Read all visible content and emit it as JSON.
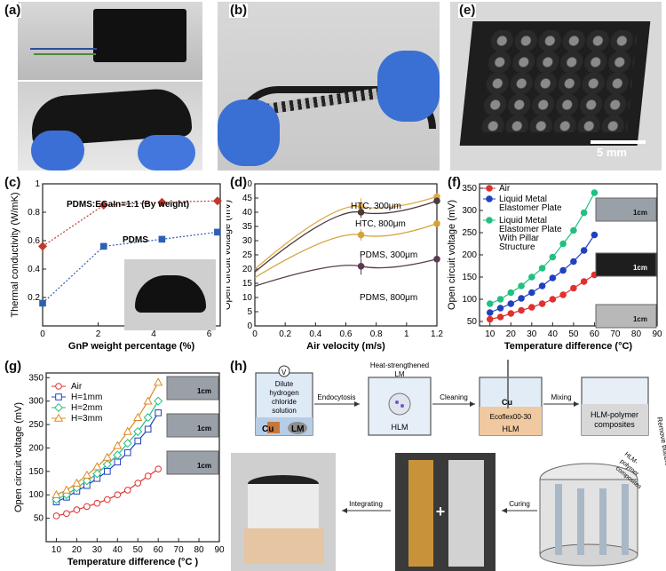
{
  "panel_labels": {
    "a": "(a)",
    "b": "(b)",
    "c": "(c)",
    "d": "(d)",
    "e": "(e)",
    "f": "(f)",
    "g": "(g)",
    "h": "(h)"
  },
  "photo_e": {
    "scale_bar_label": "5 mm"
  },
  "chart_data": [
    {
      "id": "c",
      "type": "line",
      "xlabel": "GnP weight percentage (%)",
      "ylabel": "Thermal conductivity (W/mK)",
      "xlim": [
        0,
        6.4
      ],
      "ylim": [
        0,
        1.0
      ],
      "xticks": [
        0,
        2,
        4,
        6
      ],
      "yticks": [
        0.2,
        0.4,
        0.6,
        0.8,
        1.0
      ],
      "annotations": [
        "PDMS:EGaIn=1:1 (By weight)",
        "PDMS"
      ],
      "series": [
        {
          "name": "PDMS:EGaIn=1:1 (By weight)",
          "color": "#c0392b",
          "marker": "diamond",
          "x": [
            0,
            2.2,
            4.3,
            6.3
          ],
          "y": [
            0.56,
            0.85,
            0.87,
            0.88
          ]
        },
        {
          "name": "PDMS",
          "color": "#2f5fb3",
          "marker": "square",
          "x": [
            0,
            2.2,
            4.3,
            6.3
          ],
          "y": [
            0.16,
            0.56,
            0.61,
            0.66
          ]
        }
      ]
    },
    {
      "id": "d",
      "type": "line",
      "xlabel": "Air velocity (m/s)",
      "ylabel": "Open circuit voltage (mV)",
      "xlim": [
        0,
        1.2
      ],
      "ylim": [
        0,
        50
      ],
      "xticks": [
        0,
        0.2,
        0.4,
        0.6,
        0.8,
        1.0,
        1.2
      ],
      "yticks": [
        0,
        5,
        10,
        15,
        20,
        25,
        30,
        35,
        40,
        45,
        50
      ],
      "series": [
        {
          "name": "HTC, 300μm",
          "color": "#e0a94a",
          "x": [
            0,
            0.7,
            1.2
          ],
          "y": [
            20,
            42,
            45.5
          ],
          "err": [
            0,
            3,
            0
          ]
        },
        {
          "name": "HTC, 800μm",
          "color": "#4a3a3a",
          "x": [
            0,
            0.7,
            1.2
          ],
          "y": [
            19,
            40,
            44
          ],
          "err": [
            0,
            2,
            0
          ]
        },
        {
          "name": "PDMS, 300μm",
          "color": "#d4a23a",
          "x": [
            0,
            0.7,
            1.2
          ],
          "y": [
            17,
            32,
            36
          ],
          "err": [
            0,
            2,
            0
          ]
        },
        {
          "name": "PDMS, 800μm",
          "color": "#5a3a50",
          "x": [
            0,
            0.7,
            1.2
          ],
          "y": [
            14,
            21,
            23.5
          ],
          "err": [
            0,
            3,
            0
          ]
        }
      ]
    },
    {
      "id": "f",
      "type": "line",
      "xlabel": "Temperature difference (°C)",
      "ylabel": "Open circuit voltage (mV)",
      "xlim": [
        5,
        90
      ],
      "ylim": [
        40,
        360
      ],
      "xticks": [
        10,
        20,
        30,
        40,
        50,
        60,
        70,
        80,
        90
      ],
      "yticks": [
        50,
        100,
        150,
        200,
        250,
        300,
        350
      ],
      "legend": [
        "Air",
        "Liquid Metal",
        "Elastomer Plate",
        "Liquid Metal",
        "Elastomer Plate",
        "With Pillar",
        "Structure"
      ],
      "inset_label": "1cm",
      "series": [
        {
          "name": "Air",
          "color": "#e03030",
          "x": [
            10,
            15,
            20,
            25,
            30,
            35,
            40,
            45,
            50,
            55,
            60
          ],
          "y": [
            55,
            60,
            68,
            75,
            82,
            90,
            100,
            110,
            125,
            140,
            155
          ]
        },
        {
          "name": "Liquid Metal Elastomer Plate",
          "color": "#2040c0",
          "x": [
            10,
            15,
            20,
            25,
            30,
            35,
            40,
            45,
            50,
            55,
            60
          ],
          "y": [
            70,
            80,
            90,
            102,
            115,
            130,
            148,
            165,
            185,
            210,
            245
          ]
        },
        {
          "name": "Liquid Metal Elastomer Plate With Pillar Structure",
          "color": "#20c080",
          "x": [
            10,
            15,
            20,
            25,
            30,
            35,
            40,
            45,
            50,
            55,
            60
          ],
          "y": [
            90,
            100,
            115,
            130,
            150,
            170,
            195,
            225,
            255,
            295,
            340
          ]
        }
      ]
    },
    {
      "id": "g",
      "type": "line",
      "xlabel": "Temperature difference (°C )",
      "ylabel": "Open circuit voltage (mV)",
      "xlim": [
        5,
        90
      ],
      "ylim": [
        0,
        360
      ],
      "xticks": [
        10,
        20,
        30,
        40,
        50,
        60,
        70,
        80,
        90
      ],
      "yticks": [
        50,
        100,
        150,
        200,
        250,
        300,
        350
      ],
      "inset_label": "1cm",
      "series": [
        {
          "name": "Air",
          "color": "#e03030",
          "marker": "circle",
          "x": [
            10,
            15,
            20,
            25,
            30,
            35,
            40,
            45,
            50,
            55,
            60
          ],
          "y": [
            55,
            60,
            68,
            75,
            82,
            90,
            100,
            110,
            125,
            140,
            155
          ]
        },
        {
          "name": "H=1mm",
          "color": "#2040c0",
          "marker": "square",
          "x": [
            10,
            15,
            20,
            25,
            30,
            35,
            40,
            45,
            50,
            55,
            60
          ],
          "y": [
            85,
            95,
            108,
            120,
            135,
            150,
            170,
            190,
            215,
            240,
            275
          ]
        },
        {
          "name": "H=2mm",
          "color": "#20c080",
          "marker": "diamond",
          "x": [
            10,
            15,
            20,
            25,
            30,
            35,
            40,
            45,
            50,
            55,
            60
          ],
          "y": [
            90,
            100,
            115,
            130,
            145,
            165,
            185,
            210,
            235,
            265,
            300
          ]
        },
        {
          "name": "H=3mm",
          "color": "#e08a20",
          "marker": "triangle",
          "x": [
            10,
            15,
            20,
            25,
            30,
            35,
            40,
            45,
            50,
            55,
            60
          ],
          "y": [
            100,
            110,
            125,
            142,
            160,
            180,
            205,
            235,
            265,
            300,
            340
          ]
        }
      ]
    }
  ],
  "schematic_h": {
    "beaker1": [
      "Dilute",
      "hydrogen",
      "chloride",
      "solution"
    ],
    "beaker1_v": "V",
    "beaker1_cu": "Cu",
    "beaker1_lm": "LM",
    "arrow1": "Endocytosis",
    "beaker2_top": [
      "Heat-strengthened",
      "LM"
    ],
    "beaker2_bottom": "HLM",
    "arrow2": "Cleaning",
    "beaker3_cu": "Cu",
    "beaker3_mid": "Ecoflex00-30",
    "beaker3_bottom": "HLM",
    "arrow3": "Mixing",
    "beaker4": [
      "HLM-polymer",
      "composites"
    ],
    "arrow4": "Remove bubbles",
    "pour_label": [
      "HLM-",
      "polymer",
      "composites"
    ],
    "arrow5": "Curing",
    "arrow6": "Integrating",
    "plus": "+"
  }
}
